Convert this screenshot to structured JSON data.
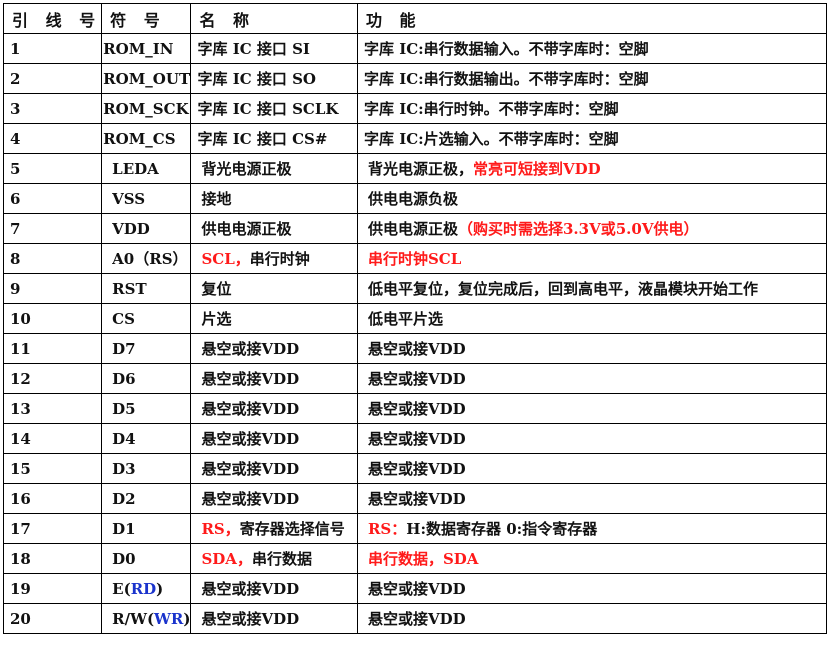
{
  "colors": {
    "red": "#ff1a1a",
    "blue": "#1a33cc",
    "black": "#111111"
  },
  "headers": [
    "引 线 号",
    "符 号",
    "名 称",
    "功 能"
  ],
  "rows": [
    {
      "pin": "1",
      "symbol": [
        {
          "t": "ROM_IN"
        }
      ],
      "name": [
        {
          "t": "字库 IC 接口 SI"
        }
      ],
      "func": [
        {
          "t": "字库 IC:串行数据输入。不带字库时：空脚"
        }
      ]
    },
    {
      "pin": "2",
      "symbol": [
        {
          "t": "ROM_OUT"
        }
      ],
      "name": [
        {
          "t": "字库 IC 接口 SO"
        }
      ],
      "func": [
        {
          "t": "字库 IC:串行数据输出。不带字库时：空脚"
        }
      ]
    },
    {
      "pin": "3",
      "symbol": [
        {
          "t": "ROM_SCK"
        }
      ],
      "name": [
        {
          "t": "字库 IC 接口 SCLK"
        }
      ],
      "func": [
        {
          "t": "字库 IC:串行时钟。不带字库时：空脚"
        }
      ]
    },
    {
      "pin": "4",
      "symbol": [
        {
          "t": "ROM_CS"
        }
      ],
      "name": [
        {
          "t": "字库 IC 接口 CS#"
        }
      ],
      "func": [
        {
          "t": "字库 IC:片选输入。不带字库时：空脚"
        }
      ]
    },
    {
      "pin": "5",
      "symbol": [
        {
          "t": "LEDA"
        }
      ],
      "name": [
        {
          "t": "背光电源正极"
        }
      ],
      "func": [
        {
          "t": "背光电源正极，"
        },
        {
          "t": "常亮可短接到VDD",
          "c": "red"
        }
      ]
    },
    {
      "pin": "6",
      "symbol": [
        {
          "t": "VSS"
        }
      ],
      "name": [
        {
          "t": "接地"
        }
      ],
      "func": [
        {
          "t": "供电电源负极"
        }
      ]
    },
    {
      "pin": "7",
      "symbol": [
        {
          "t": "VDD"
        }
      ],
      "name": [
        {
          "t": "供电电源正极"
        }
      ],
      "func": [
        {
          "t": "供电电源正极"
        },
        {
          "t": "（购买时需选择3.3V或5.0V供电）",
          "c": "red"
        }
      ]
    },
    {
      "pin": "8",
      "symbol": [
        {
          "t": "A0（RS）"
        }
      ],
      "name": [
        {
          "t": "SCL，",
          "c": "red"
        },
        {
          "t": "串行时钟"
        }
      ],
      "func": [
        {
          "t": "串行时钟SCL",
          "c": "red"
        }
      ]
    },
    {
      "pin": "9",
      "symbol": [
        {
          "t": "RST"
        }
      ],
      "name": [
        {
          "t": "复位"
        }
      ],
      "func": [
        {
          "t": "低电平复位，复位完成后，回到高电平，液晶模块开始工作"
        }
      ]
    },
    {
      "pin": "10",
      "symbol": [
        {
          "t": "CS"
        }
      ],
      "name": [
        {
          "t": "片选"
        }
      ],
      "func": [
        {
          "t": "低电平片选"
        }
      ]
    },
    {
      "pin": "11",
      "symbol": [
        {
          "t": "D7"
        }
      ],
      "name": [
        {
          "t": "悬空或接VDD"
        }
      ],
      "func": [
        {
          "t": "悬空或接VDD"
        }
      ]
    },
    {
      "pin": "12",
      "symbol": [
        {
          "t": "D6"
        }
      ],
      "name": [
        {
          "t": "悬空或接VDD"
        }
      ],
      "func": [
        {
          "t": "悬空或接VDD"
        }
      ]
    },
    {
      "pin": "13",
      "symbol": [
        {
          "t": "D5"
        }
      ],
      "name": [
        {
          "t": "悬空或接VDD"
        }
      ],
      "func": [
        {
          "t": "悬空或接VDD"
        }
      ]
    },
    {
      "pin": "14",
      "symbol": [
        {
          "t": "D4"
        }
      ],
      "name": [
        {
          "t": "悬空或接VDD"
        }
      ],
      "func": [
        {
          "t": "悬空或接VDD"
        }
      ]
    },
    {
      "pin": "15",
      "symbol": [
        {
          "t": "D3"
        }
      ],
      "name": [
        {
          "t": "悬空或接VDD"
        }
      ],
      "func": [
        {
          "t": "悬空或接VDD"
        }
      ]
    },
    {
      "pin": "16",
      "symbol": [
        {
          "t": "D2"
        }
      ],
      "name": [
        {
          "t": "悬空或接VDD"
        }
      ],
      "func": [
        {
          "t": "悬空或接VDD"
        }
      ]
    },
    {
      "pin": "17",
      "symbol": [
        {
          "t": "D1"
        }
      ],
      "name": [
        {
          "t": "RS，",
          "c": "red"
        },
        {
          "t": "寄存器选择信号"
        }
      ],
      "func": [
        {
          "t": "RS：",
          "c": "red"
        },
        {
          "t": "H:数据寄存器 0:指令寄存器"
        }
      ]
    },
    {
      "pin": "18",
      "symbol": [
        {
          "t": "D0"
        }
      ],
      "name": [
        {
          "t": "SDA，",
          "c": "red"
        },
        {
          "t": "串行数据"
        }
      ],
      "func": [
        {
          "t": "串行数据，SDA",
          "c": "red"
        }
      ]
    },
    {
      "pin": "19",
      "symbol": [
        {
          "t": "E("
        },
        {
          "t": "RD",
          "c": "blue"
        },
        {
          "t": ")"
        }
      ],
      "name": [
        {
          "t": "悬空或接VDD"
        }
      ],
      "func": [
        {
          "t": "悬空或接VDD"
        }
      ]
    },
    {
      "pin": "20",
      "symbol": [
        {
          "t": "R/W("
        },
        {
          "t": "WR",
          "c": "blue"
        },
        {
          "t": ")"
        }
      ],
      "name": [
        {
          "t": "悬空或接VDD"
        }
      ],
      "func": [
        {
          "t": "悬空或接VDD"
        }
      ]
    }
  ]
}
